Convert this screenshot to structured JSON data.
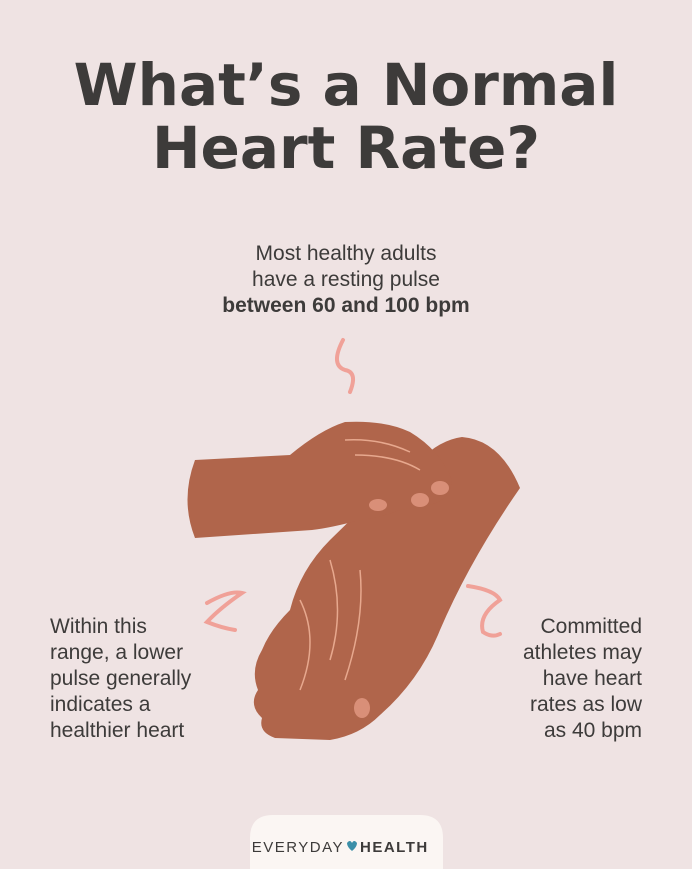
{
  "header": {
    "title_lines": [
      "What’s a Normal",
      "Heart Rate?"
    ]
  },
  "center_text": {
    "lines": [
      "Most healthy adults",
      "have a resting pulse"
    ],
    "bold_line": "between 60 and 100 bpm"
  },
  "left_text": {
    "lines": [
      "Within this",
      "range, a lower",
      "pulse generally",
      "indicates a",
      "healthier heart"
    ]
  },
  "right_text": {
    "lines": [
      "Committed",
      "athletes may",
      "have heart",
      "rates as low",
      "as 40 bpm"
    ]
  },
  "logo": {
    "left": "EVERYDAY",
    "right": "HEALTH"
  }
}
